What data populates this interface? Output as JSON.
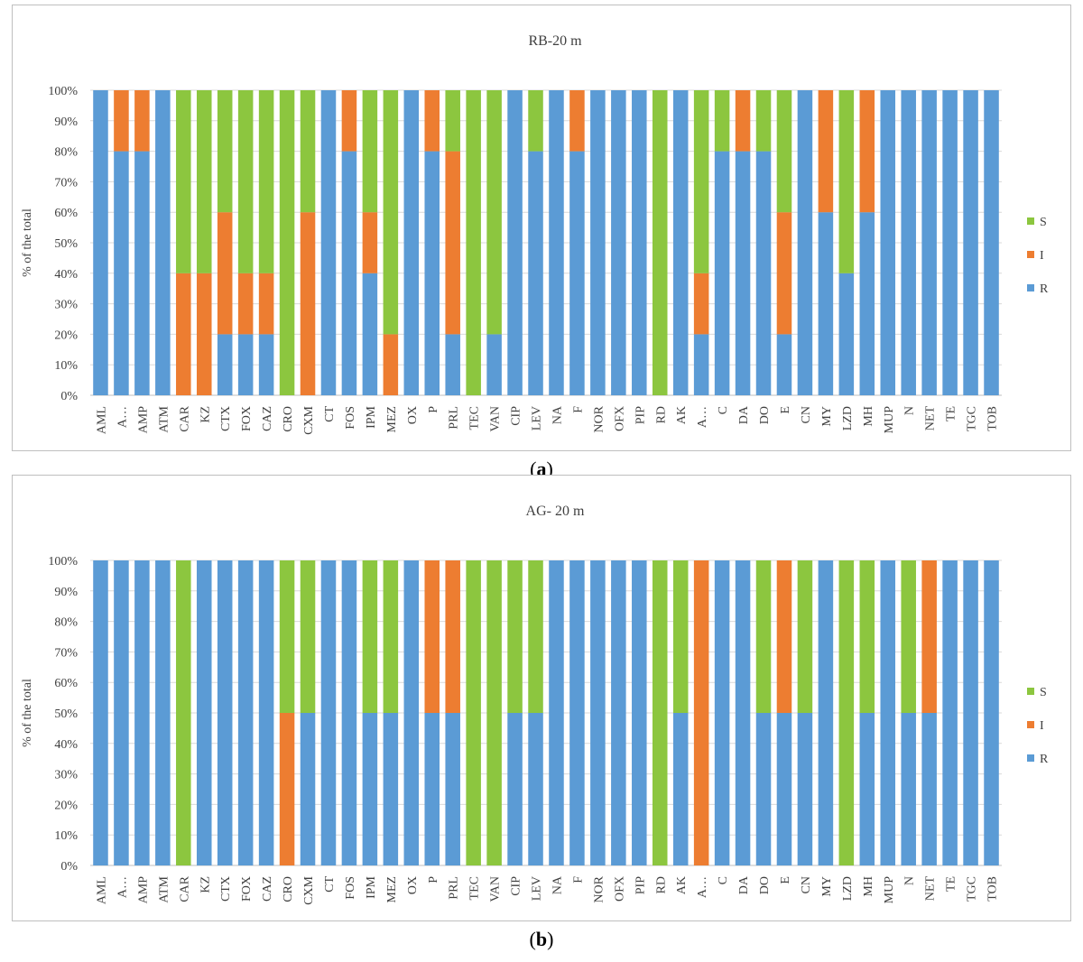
{
  "colors": {
    "R": "#5b9bd5",
    "I": "#ed7d31",
    "S": "#8cc63f",
    "grid": "#d9d9d9",
    "axis": "#bfbfbf",
    "text": "#404040"
  },
  "legend": {
    "S": "S",
    "I": "I",
    "R": "R"
  },
  "ylabel": "% of the total",
  "yticks": [
    "0%",
    "10%",
    "20%",
    "30%",
    "40%",
    "50%",
    "60%",
    "70%",
    "80%",
    "90%",
    "100%"
  ],
  "captions": {
    "a_open": "(",
    "a_letter": "a",
    "a_close": ")",
    "b_open": "(",
    "b_letter": "b",
    "b_close": ")"
  },
  "chart_data": [
    {
      "type": "bar",
      "stacked": true,
      "title": "RB-20 m",
      "ylabel": "% of the total",
      "ylim": [
        0,
        100
      ],
      "categories": [
        "AML",
        "A…",
        "AMP",
        "ATM",
        "CAR",
        "KZ",
        "CTX",
        "FOX",
        "CAZ",
        "CRO",
        "CXM",
        "CT",
        "FOS",
        "IPM",
        "MEZ",
        "OX",
        "P",
        "PRL",
        "TEC",
        "VAN",
        "CIP",
        "LEV",
        "NA",
        "F",
        "NOR",
        "OFX",
        "PIP",
        "RD",
        "AK",
        "A…",
        "C",
        "DA",
        "DO",
        "E",
        "CN",
        "MY",
        "LZD",
        "MH",
        "MUP",
        "N",
        "NET",
        "TE",
        "TGC",
        "TOB"
      ],
      "series": [
        {
          "name": "R",
          "values": [
            100,
            80,
            80,
            100,
            0,
            0,
            20,
            20,
            20,
            0,
            0,
            100,
            80,
            40,
            0,
            100,
            80,
            20,
            0,
            20,
            100,
            80,
            100,
            80,
            100,
            100,
            100,
            0,
            100,
            20,
            80,
            80,
            80,
            20,
            100,
            60,
            40,
            60,
            100,
            100,
            100,
            100,
            100,
            100
          ]
        },
        {
          "name": "I",
          "values": [
            0,
            20,
            20,
            0,
            40,
            40,
            40,
            20,
            20,
            0,
            60,
            0,
            20,
            20,
            20,
            0,
            20,
            60,
            0,
            0,
            0,
            0,
            0,
            20,
            0,
            0,
            0,
            0,
            0,
            20,
            0,
            20,
            0,
            40,
            0,
            40,
            0,
            40,
            0,
            0,
            0,
            0,
            0,
            0
          ]
        },
        {
          "name": "S",
          "values": [
            0,
            0,
            0,
            0,
            60,
            60,
            40,
            60,
            60,
            100,
            40,
            0,
            0,
            40,
            80,
            0,
            0,
            20,
            100,
            80,
            0,
            20,
            0,
            0,
            0,
            0,
            0,
            100,
            0,
            60,
            20,
            0,
            20,
            40,
            0,
            0,
            60,
            0,
            0,
            0,
            0,
            0,
            0,
            0
          ]
        }
      ]
    },
    {
      "type": "bar",
      "stacked": true,
      "title": "AG- 20 m",
      "ylabel": "% of the total",
      "ylim": [
        0,
        100
      ],
      "categories": [
        "AML",
        "A…",
        "AMP",
        "ATM",
        "CAR",
        "KZ",
        "CTX",
        "FOX",
        "CAZ",
        "CRO",
        "CXM",
        "CT",
        "FOS",
        "IPM",
        "MEZ",
        "OX",
        "P",
        "PRL",
        "TEC",
        "VAN",
        "CIP",
        "LEV",
        "NA",
        "F",
        "NOR",
        "OFX",
        "PIP",
        "RD",
        "AK",
        "A…",
        "C",
        "DA",
        "DO",
        "E",
        "CN",
        "MY",
        "LZD",
        "MH",
        "MUP",
        "N",
        "NET",
        "TE",
        "TGC",
        "TOB"
      ],
      "series": [
        {
          "name": "R",
          "values": [
            100,
            100,
            100,
            100,
            0,
            100,
            100,
            100,
            100,
            0,
            50,
            100,
            100,
            50,
            50,
            100,
            50,
            50,
            0,
            0,
            50,
            50,
            100,
            100,
            100,
            100,
            100,
            0,
            50,
            0,
            100,
            100,
            50,
            50,
            50,
            100,
            0,
            50,
            100,
            50,
            50,
            100,
            100,
            100
          ]
        },
        {
          "name": "I",
          "values": [
            0,
            0,
            0,
            0,
            0,
            0,
            0,
            0,
            0,
            50,
            0,
            0,
            0,
            0,
            0,
            0,
            50,
            50,
            0,
            0,
            0,
            0,
            0,
            0,
            0,
            0,
            0,
            0,
            0,
            100,
            0,
            0,
            0,
            50,
            0,
            0,
            0,
            0,
            0,
            0,
            50,
            0,
            0,
            0
          ]
        },
        {
          "name": "S",
          "values": [
            0,
            0,
            0,
            0,
            100,
            0,
            0,
            0,
            0,
            50,
            50,
            0,
            0,
            50,
            50,
            0,
            0,
            0,
            100,
            100,
            50,
            50,
            0,
            0,
            0,
            0,
            0,
            100,
            50,
            0,
            0,
            0,
            50,
            0,
            50,
            0,
            100,
            50,
            0,
            50,
            0,
            0,
            0,
            0
          ]
        }
      ]
    }
  ]
}
